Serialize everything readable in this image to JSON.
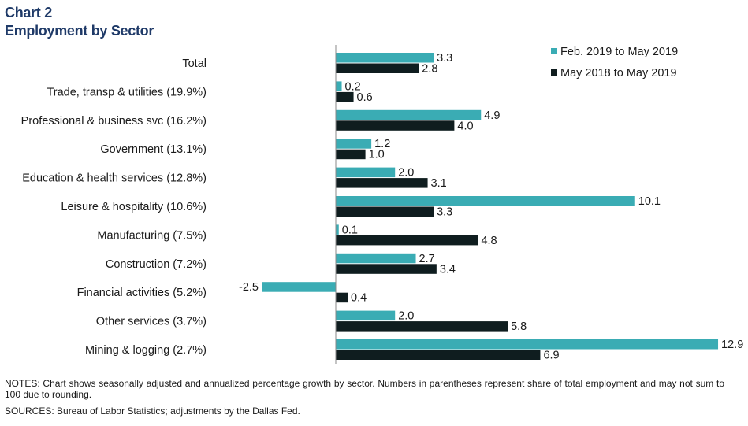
{
  "title": "Chart 2",
  "subtitle": "Employment by Sector",
  "notes": "NOTES: Chart shows seasonally adjusted and annualized percentage growth by sector. Numbers in parentheses represent share of total employment and may not sum to 100 due to rounding.",
  "sources": "SOURCES: Bureau of Labor Statistics; adjustments by the Dallas Fed.",
  "chart_data": {
    "type": "bar",
    "orientation": "horizontal",
    "categories": [
      "Total",
      "Trade, transp & utilities (19.9%)",
      "Professional & business svc (16.2%)",
      "Government (13.1%)",
      "Education & health services (12.8%)",
      "Leisure & hospitality (10.6%)",
      "Manufacturing (7.5%)",
      "Construction (7.2%)",
      "Financial activities (5.2%)",
      "Other services (3.7%)",
      "Mining & logging (2.7%)"
    ],
    "series": [
      {
        "name": "Feb. 2019 to May 2019",
        "color": "#3aacb4",
        "values": [
          3.3,
          0.2,
          4.9,
          1.2,
          2.0,
          10.1,
          0.1,
          2.7,
          -2.5,
          2.0,
          12.9
        ]
      },
      {
        "name": "May 2018 to May 2019",
        "color": "#0f1d1f",
        "values": [
          2.8,
          0.6,
          4.0,
          1.0,
          3.1,
          3.3,
          4.8,
          3.4,
          0.4,
          5.8,
          6.9
        ]
      }
    ],
    "xlim": [
      -2.5,
      12.9
    ],
    "legend_position": "top-right",
    "grid": false
  }
}
